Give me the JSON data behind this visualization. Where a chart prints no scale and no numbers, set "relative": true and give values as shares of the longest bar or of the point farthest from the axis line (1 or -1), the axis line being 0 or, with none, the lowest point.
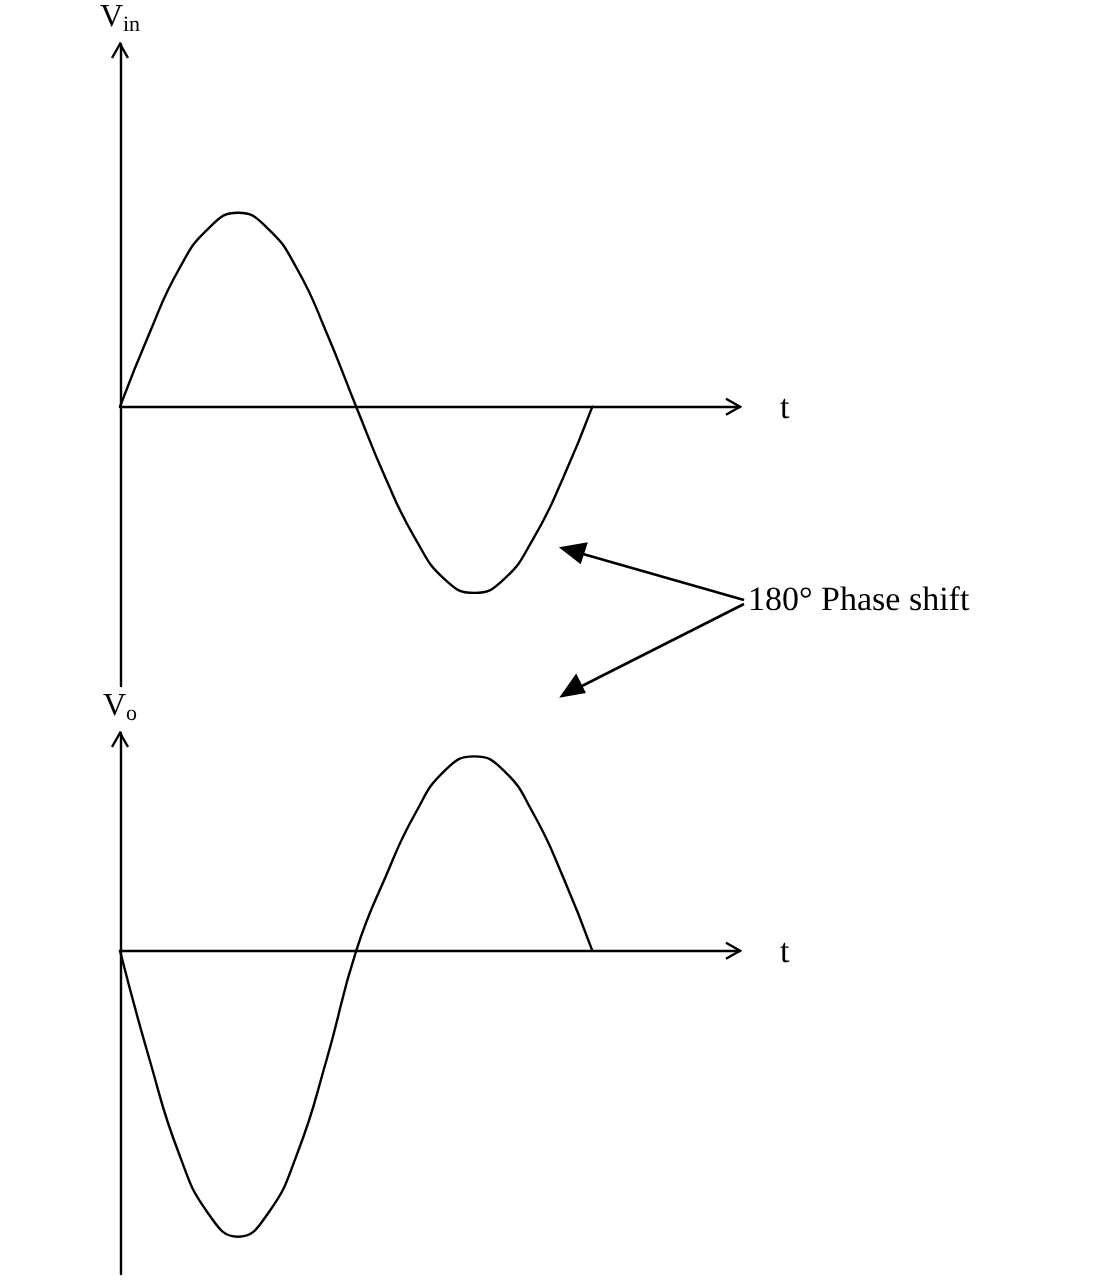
{
  "chart_data": [
    {
      "type": "line",
      "relative": true,
      "ylabel": "V$_{in}$",
      "xlabel": "t",
      "tick_labels": false,
      "grid": false,
      "marker": "none",
      "line_style": "solid",
      "categories": [
        null,
        null,
        null,
        null,
        null,
        null,
        null,
        null,
        null,
        null,
        null,
        null,
        null,
        null,
        null,
        null,
        null,
        null,
        null,
        null,
        null,
        null
      ],
      "series": [
        {
          "color": "#000000",
          "values": [
            0,
            0.38,
            0.71,
            0.92,
            1,
            0.92,
            0.71,
            0.38,
            0,
            -0.37,
            -0.68,
            -0.89,
            -0.96,
            -0.89,
            -0.68,
            -0.37,
            0,
            null,
            null,
            null,
            null,
            null
          ]
        }
      ],
      "annotations": [
        "180° Phase shift"
      ]
    },
    {
      "type": "line",
      "relative": true,
      "ylabel": "V$_{o}$",
      "xlabel": "t",
      "tick_labels": false,
      "grid": false,
      "marker": "none",
      "line_style": "solid",
      "categories": [
        null,
        null,
        null,
        null,
        null,
        null,
        null,
        null,
        null,
        null,
        null,
        null,
        null,
        null,
        null,
        null,
        null,
        null,
        null,
        null,
        null,
        null
      ],
      "series": [
        {
          "color": "#000000",
          "values": [
            0,
            -0.38,
            -0.71,
            -0.92,
            -1,
            -0.92,
            -0.71,
            -0.38,
            0,
            0.26,
            0.48,
            0.63,
            0.68,
            0.63,
            0.48,
            0.26,
            0,
            null,
            null,
            null,
            null,
            null
          ]
        }
      ]
    }
  ]
}
